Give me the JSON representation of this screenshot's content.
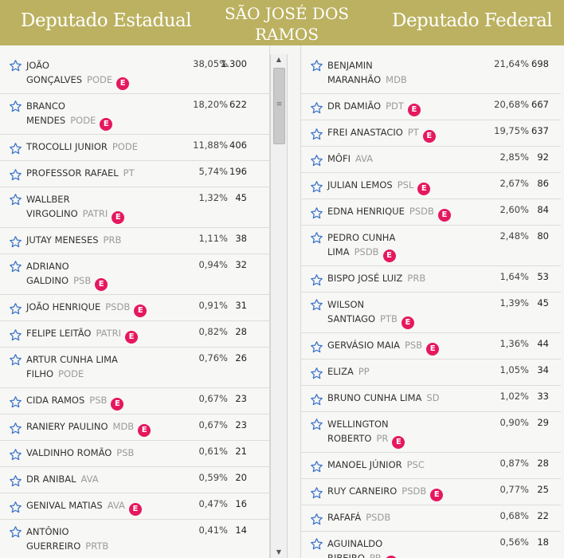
{
  "header": {
    "left_title": "Deputado Estadual",
    "city_title": "SÃO JOSÉ DOS RAMOS",
    "right_title": "Deputado Federal",
    "background_color": "#bbb160",
    "badge_color": "#e5185f",
    "badge_label": "E"
  },
  "estadual": {
    "candidates": [
      {
        "name": [
          "JOÃO",
          "GONÇALVES"
        ],
        "party": "PODE",
        "elected": true,
        "percent": "38,05%",
        "votes": "1.300"
      },
      {
        "name": [
          "BRANCO",
          "MENDES"
        ],
        "party": "PODE",
        "elected": true,
        "percent": "18,20%",
        "votes": "622"
      },
      {
        "name": [
          "TROCOLLI JUNIOR"
        ],
        "party": "PODE",
        "elected": false,
        "percent": "11,88%",
        "votes": "406"
      },
      {
        "name": [
          "PROFESSOR RAFAEL"
        ],
        "party": "PT",
        "elected": false,
        "percent": "5,74%",
        "votes": "196"
      },
      {
        "name": [
          "WALLBER",
          "VIRGOLINO"
        ],
        "party": "PATRI",
        "elected": true,
        "percent": "1,32%",
        "votes": "45"
      },
      {
        "name": [
          "JUTAY MENESES"
        ],
        "party": "PRB",
        "elected": false,
        "percent": "1,11%",
        "votes": "38"
      },
      {
        "name": [
          "ADRIANO",
          "GALDINO"
        ],
        "party": "PSB",
        "elected": true,
        "percent": "0,94%",
        "votes": "32"
      },
      {
        "name": [
          "JOÃO HENRIQUE"
        ],
        "party": "PSDB",
        "elected": true,
        "percent": "0,91%",
        "votes": "31"
      },
      {
        "name": [
          "FELIPE LEITÃO"
        ],
        "party": "PATRI",
        "elected": true,
        "percent": "0,82%",
        "votes": "28"
      },
      {
        "name": [
          "ARTUR CUNHA LIMA",
          "FILHO"
        ],
        "party": "PODE",
        "elected": false,
        "percent": "0,76%",
        "votes": "26"
      },
      {
        "name": [
          "CIDA RAMOS"
        ],
        "party": "PSB",
        "elected": true,
        "percent": "0,67%",
        "votes": "23"
      },
      {
        "name": [
          "RANIERY PAULINO"
        ],
        "party": "MDB",
        "elected": true,
        "percent": "0,67%",
        "votes": "23"
      },
      {
        "name": [
          "VALDINHO ROMÃO"
        ],
        "party": "PSB",
        "elected": false,
        "percent": "0,61%",
        "votes": "21"
      },
      {
        "name": [
          "DR ANIBAL"
        ],
        "party": "AVA",
        "elected": false,
        "percent": "0,59%",
        "votes": "20"
      },
      {
        "name": [
          "GENIVAL MATIAS"
        ],
        "party": "AVA",
        "elected": true,
        "percent": "0,47%",
        "votes": "16"
      },
      {
        "name": [
          "ANTÔNIO",
          "GUERREIRO"
        ],
        "party": "PRTB",
        "elected": false,
        "percent": "0,41%",
        "votes": "14"
      }
    ]
  },
  "federal": {
    "candidates": [
      {
        "name": [
          "BENJAMIN",
          "MARANHÃO"
        ],
        "party": "MDB",
        "elected": false,
        "percent": "21,64%",
        "votes": "698"
      },
      {
        "name": [
          "DR DAMIÃO"
        ],
        "party": "PDT",
        "elected": true,
        "percent": "20,68%",
        "votes": "667"
      },
      {
        "name": [
          "FREI ANASTACIO"
        ],
        "party": "PT",
        "elected": true,
        "percent": "19,75%",
        "votes": "637"
      },
      {
        "name": [
          "MÔFI"
        ],
        "party": "AVA",
        "elected": false,
        "percent": "2,85%",
        "votes": "92"
      },
      {
        "name": [
          "JULIAN LEMOS"
        ],
        "party": "PSL",
        "elected": true,
        "percent": "2,67%",
        "votes": "86"
      },
      {
        "name": [
          "EDNA HENRIQUE"
        ],
        "party": "PSDB",
        "elected": true,
        "percent": "2,60%",
        "votes": "84"
      },
      {
        "name": [
          "PEDRO CUNHA",
          "LIMA"
        ],
        "party": "PSDB",
        "elected": true,
        "percent": "2,48%",
        "votes": "80"
      },
      {
        "name": [
          "BISPO JOSÉ LUIZ"
        ],
        "party": "PRB",
        "elected": false,
        "percent": "1,64%",
        "votes": "53"
      },
      {
        "name": [
          "WILSON",
          "SANTIAGO"
        ],
        "party": "PTB",
        "elected": true,
        "percent": "1,39%",
        "votes": "45"
      },
      {
        "name": [
          "GERVÁSIO MAIA"
        ],
        "party": "PSB",
        "elected": true,
        "percent": "1,36%",
        "votes": "44"
      },
      {
        "name": [
          "ELIZA"
        ],
        "party": "PP",
        "elected": false,
        "percent": "1,05%",
        "votes": "34"
      },
      {
        "name": [
          "BRUNO CUNHA LIMA"
        ],
        "party": "SD",
        "elected": false,
        "percent": "1,02%",
        "votes": "33"
      },
      {
        "name": [
          "WELLINGTON",
          "ROBERTO"
        ],
        "party": "PR",
        "elected": true,
        "percent": "0,90%",
        "votes": "29"
      },
      {
        "name": [
          "MANOEL JÚNIOR"
        ],
        "party": "PSC",
        "elected": false,
        "percent": "0,87%",
        "votes": "28"
      },
      {
        "name": [
          "RUY CARNEIRO"
        ],
        "party": "PSDB",
        "elected": true,
        "percent": "0,77%",
        "votes": "25"
      },
      {
        "name": [
          "RAFAFÁ"
        ],
        "party": "PSDB",
        "elected": false,
        "percent": "0,68%",
        "votes": "22"
      },
      {
        "name": [
          "AGUINALDO",
          "RIBEIRO"
        ],
        "party": "PP",
        "elected": true,
        "percent": "0,56%",
        "votes": "18"
      }
    ]
  },
  "icons": {
    "favorite": "star-outline-icon",
    "elected": "elected-badge-icon",
    "scroll_up": "scroll-up-arrow-icon",
    "scroll_down": "scroll-down-arrow-icon"
  },
  "star_color": "#3a73c8"
}
